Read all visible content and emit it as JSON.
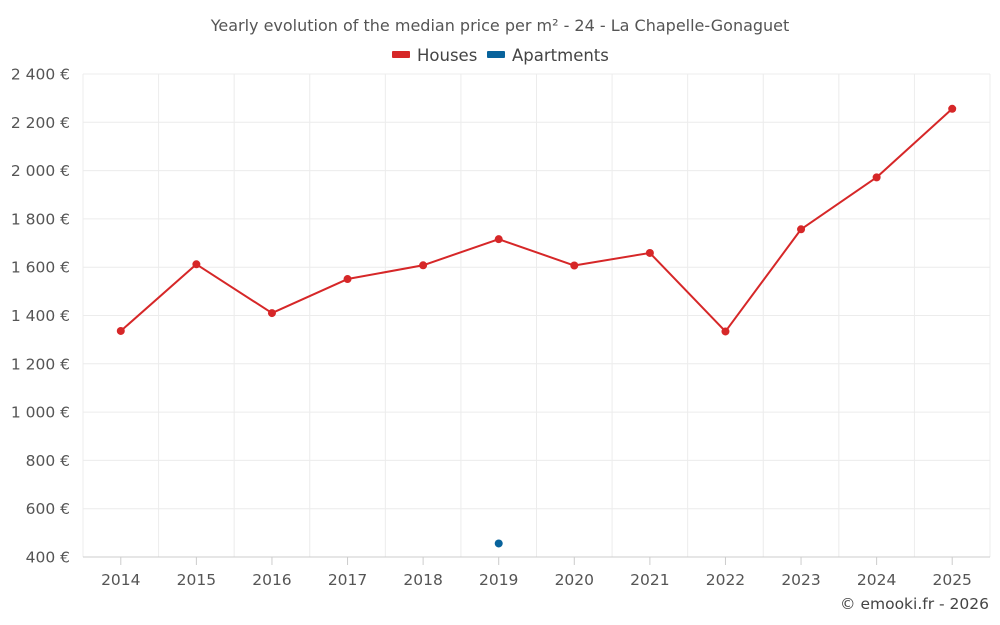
{
  "chart_data": {
    "type": "line",
    "title": "Yearly evolution of the median price per m² - 24 - La Chapelle-Gonaguet",
    "categories": [
      "2014",
      "2015",
      "2016",
      "2017",
      "2018",
      "2019",
      "2020",
      "2021",
      "2022",
      "2023",
      "2024",
      "2025"
    ],
    "ylim": [
      400,
      2400
    ],
    "ytick_values": [
      400,
      600,
      800,
      1000,
      1200,
      1400,
      1600,
      1800,
      2000,
      2200,
      2400
    ],
    "ytick_labels": [
      "400 €",
      "600 €",
      "800 €",
      "1 000 €",
      "1 200 €",
      "1 400 €",
      "1 600 €",
      "1 800 €",
      "2 000 €",
      "2 200 €",
      "2 400 €"
    ],
    "legend_position": "top-center",
    "grid": true,
    "series": [
      {
        "name": "Houses",
        "color": "#d62728",
        "values": [
          1336,
          1612,
          1410,
          1551,
          1608,
          1716,
          1607,
          1659,
          1334,
          1757,
          1972,
          2256
        ]
      },
      {
        "name": "Apartments",
        "color": "#08639c",
        "values": [
          null,
          null,
          null,
          null,
          null,
          456,
          null,
          null,
          null,
          null,
          null,
          null
        ]
      }
    ]
  },
  "credit": "© emooki.fr - 2026"
}
